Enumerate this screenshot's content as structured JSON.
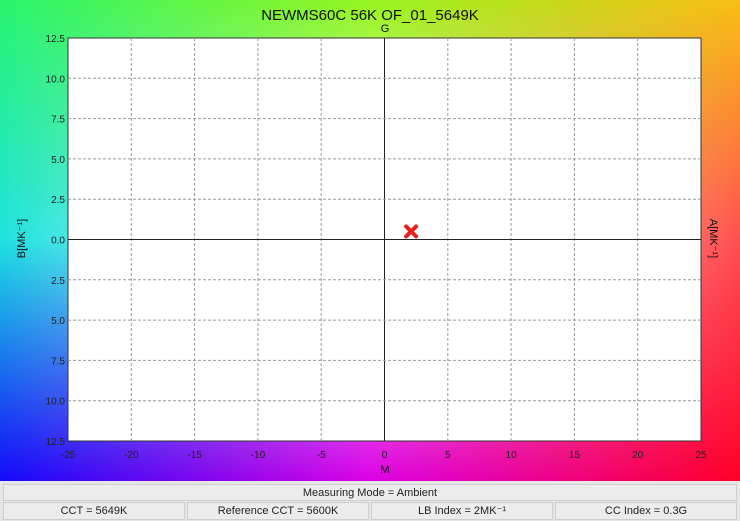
{
  "chart_data": {
    "type": "scatter",
    "title": "NEWMS60C 56K OF_01_5649K",
    "top_label": "G",
    "xlabel": "M",
    "ylabel_left": "B[MK⁻¹]",
    "ylabel_right": "A[MK⁻¹]",
    "xlim": [
      -25,
      25
    ],
    "ylim": [
      -12.5,
      12.5
    ],
    "x_ticks": [
      "-25",
      "-20",
      "-15",
      "-10",
      "-5",
      "0",
      "5",
      "10",
      "15",
      "20",
      "25"
    ],
    "y_ticks": [
      "12.5",
      "10.0",
      "7.5",
      "5.0",
      "2.5",
      "0.0",
      "2.5",
      "5.0",
      "7.5",
      "10.0",
      "12.5"
    ],
    "grid": true,
    "points": [
      {
        "x": 2.1,
        "y": 0.5,
        "marker": "x",
        "color": "#e8201f"
      }
    ]
  },
  "footer": {
    "mode": "Measuring Mode = Ambient",
    "cct": "CCT = 5649K",
    "ref_cct": "Reference CCT = 5600K",
    "lb_index": "LB Index = 2MK⁻¹",
    "cc_index": "CC Index = 0.3G"
  }
}
